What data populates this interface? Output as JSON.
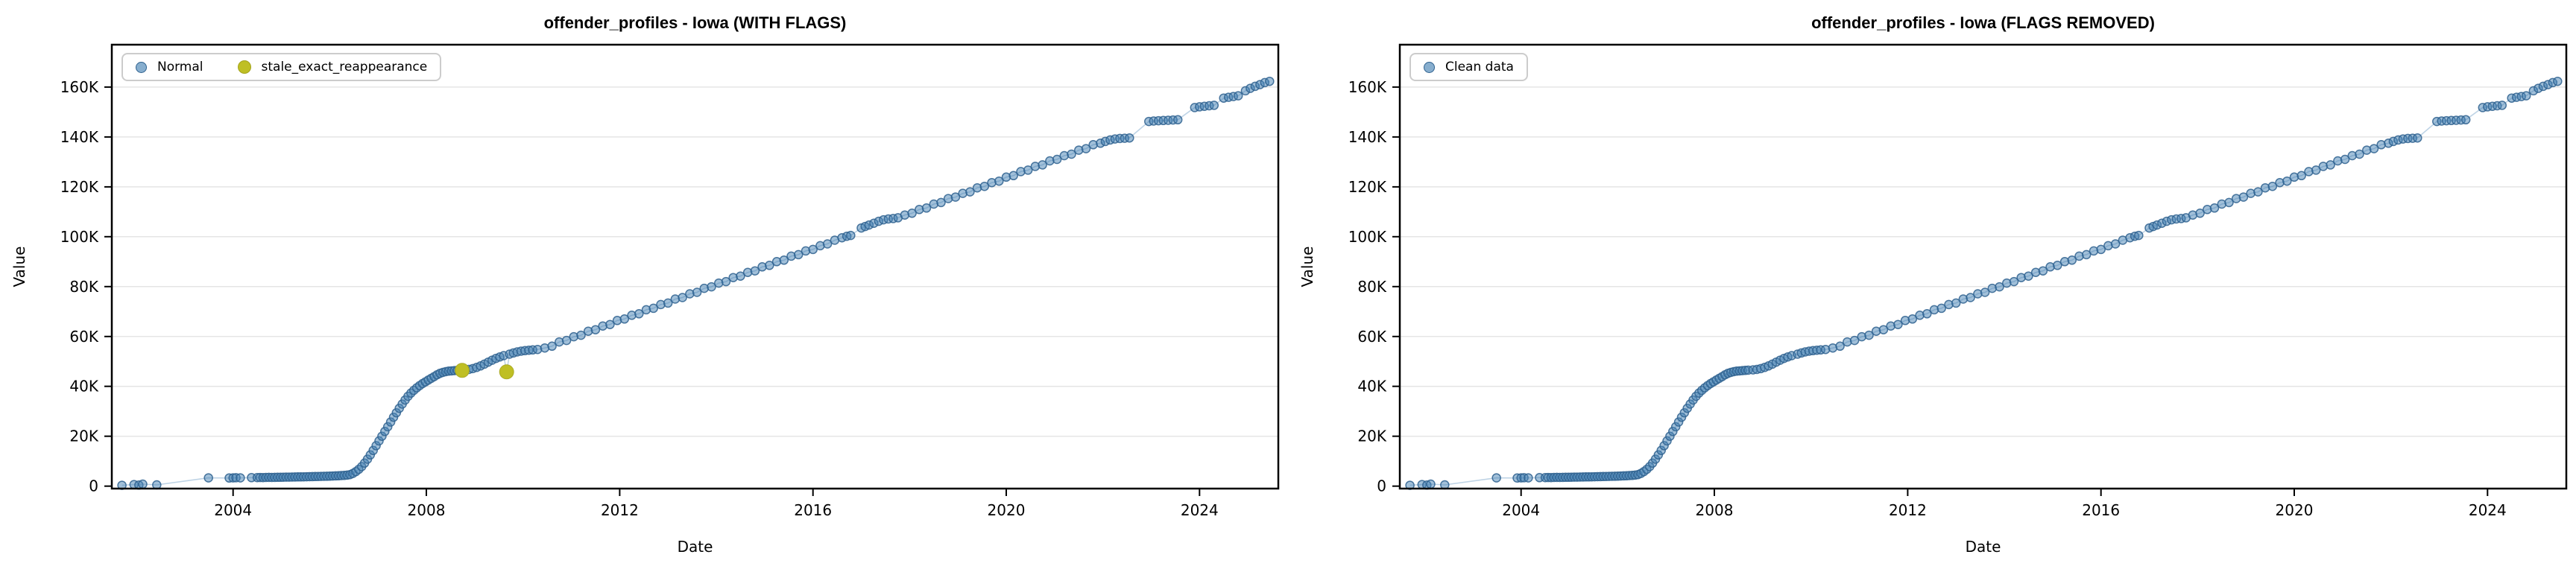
{
  "chart_data": {
    "type": "scatter",
    "xlabel": "Date",
    "ylabel": "Value",
    "grid": "horizontal",
    "grid_color": "#e5e5e5",
    "spine_color": "#000000",
    "background": "#ffffff",
    "xlim": [
      2001.49,
      2025.63
    ],
    "ylim": [
      -1000,
      177000
    ],
    "xticks": [
      2004,
      2008,
      2012,
      2016,
      2020,
      2024
    ],
    "xtick_labels": [
      "2004",
      "2008",
      "2012",
      "2016",
      "2020",
      "2024"
    ],
    "yticks": [
      0,
      20000,
      40000,
      60000,
      80000,
      100000,
      120000,
      140000,
      160000
    ],
    "ytick_labels": [
      "0",
      "20K",
      "40K",
      "60K",
      "80K",
      "100K",
      "120K",
      "140K",
      "160K"
    ],
    "line_color": "#4682b4",
    "line_opacity": 0.35,
    "series": [
      {
        "name": "Normal",
        "color": "#4682b4",
        "edge_color": "#2f618f",
        "fill_opacity": 0.5,
        "radius": 5.5,
        "stroke_width": 1.5,
        "points": [
          [
            2001.7,
            300
          ],
          [
            2001.95,
            600
          ],
          [
            2002.05,
            400
          ],
          [
            2002.13,
            800
          ],
          [
            2002.42,
            500
          ],
          [
            2003.49,
            3300
          ],
          [
            2003.92,
            3250
          ],
          [
            2004.0,
            3300
          ],
          [
            2004.06,
            3350
          ],
          [
            2004.15,
            3300
          ],
          [
            2004.38,
            3400
          ],
          [
            2004.5,
            3420
          ],
          [
            2004.56,
            3450
          ],
          [
            2004.62,
            3430
          ],
          [
            2004.68,
            3480
          ],
          [
            2004.74,
            3500
          ],
          [
            2004.8,
            3470
          ],
          [
            2004.86,
            3520
          ],
          [
            2004.92,
            3550
          ],
          [
            2004.98,
            3540
          ],
          [
            2005.04,
            3580
          ],
          [
            2005.1,
            3600
          ],
          [
            2005.16,
            3590
          ],
          [
            2005.22,
            3630
          ],
          [
            2005.28,
            3650
          ],
          [
            2005.34,
            3680
          ],
          [
            2005.4,
            3700
          ],
          [
            2005.46,
            3720
          ],
          [
            2005.52,
            3750
          ],
          [
            2005.58,
            3780
          ],
          [
            2005.64,
            3800
          ],
          [
            2005.7,
            3830
          ],
          [
            2005.76,
            3860
          ],
          [
            2005.82,
            3900
          ],
          [
            2005.88,
            3930
          ],
          [
            2005.94,
            3960
          ],
          [
            2006.0,
            4000
          ],
          [
            2006.06,
            4050
          ],
          [
            2006.12,
            4100
          ],
          [
            2006.18,
            4150
          ],
          [
            2006.24,
            4220
          ],
          [
            2006.3,
            4300
          ],
          [
            2006.36,
            4400
          ],
          [
            2006.42,
            4600
          ],
          [
            2006.48,
            5100
          ],
          [
            2006.54,
            5800
          ],
          [
            2006.6,
            6700
          ],
          [
            2006.66,
            7800
          ],
          [
            2006.72,
            9200
          ],
          [
            2006.78,
            10800
          ],
          [
            2006.84,
            12500
          ],
          [
            2006.9,
            14300
          ],
          [
            2006.96,
            16200
          ],
          [
            2007.02,
            18100
          ],
          [
            2007.08,
            20000
          ],
          [
            2007.14,
            21900
          ],
          [
            2007.2,
            23800
          ],
          [
            2007.26,
            25700
          ],
          [
            2007.32,
            27600
          ],
          [
            2007.38,
            29400
          ],
          [
            2007.44,
            31200
          ],
          [
            2007.5,
            32900
          ],
          [
            2007.56,
            34500
          ],
          [
            2007.62,
            36000
          ],
          [
            2007.68,
            37300
          ],
          [
            2007.74,
            38400
          ],
          [
            2007.8,
            39400
          ],
          [
            2007.86,
            40300
          ],
          [
            2007.92,
            41100
          ],
          [
            2007.98,
            41800
          ],
          [
            2008.04,
            42500
          ],
          [
            2008.1,
            43200
          ],
          [
            2008.16,
            43900
          ],
          [
            2008.22,
            44600
          ],
          [
            2008.28,
            45200
          ],
          [
            2008.34,
            45600
          ],
          [
            2008.4,
            45900
          ],
          [
            2008.46,
            46100
          ],
          [
            2008.52,
            46200
          ],
          [
            2008.58,
            46300
          ],
          [
            2008.64,
            46400
          ],
          [
            2008.7,
            46500
          ],
          [
            2008.8,
            46600
          ],
          [
            2008.88,
            46800
          ],
          [
            2008.96,
            47100
          ],
          [
            2009.04,
            47600
          ],
          [
            2009.12,
            48200
          ],
          [
            2009.2,
            48900
          ],
          [
            2009.28,
            49700
          ],
          [
            2009.36,
            50500
          ],
          [
            2009.44,
            51200
          ],
          [
            2009.52,
            51800
          ],
          [
            2009.6,
            52300
          ],
          [
            2009.72,
            52900
          ],
          [
            2009.8,
            53400
          ],
          [
            2009.88,
            53800
          ],
          [
            2009.96,
            54100
          ],
          [
            2010.04,
            54300
          ],
          [
            2010.12,
            54500
          ],
          [
            2010.2,
            54600
          ],
          [
            2010.3,
            54800
          ],
          [
            2010.45,
            55400
          ],
          [
            2010.6,
            56100
          ],
          [
            2010.75,
            57800
          ],
          [
            2010.9,
            58400
          ],
          [
            2011.05,
            59900
          ],
          [
            2011.2,
            60500
          ],
          [
            2011.35,
            62100
          ],
          [
            2011.5,
            62700
          ],
          [
            2011.65,
            64200
          ],
          [
            2011.8,
            64800
          ],
          [
            2011.95,
            66400
          ],
          [
            2012.1,
            67000
          ],
          [
            2012.25,
            68500
          ],
          [
            2012.4,
            69100
          ],
          [
            2012.55,
            70700
          ],
          [
            2012.7,
            71300
          ],
          [
            2012.85,
            72800
          ],
          [
            2013.0,
            73400
          ],
          [
            2013.15,
            75000
          ],
          [
            2013.3,
            75600
          ],
          [
            2013.45,
            77100
          ],
          [
            2013.6,
            77700
          ],
          [
            2013.75,
            79300
          ],
          [
            2013.9,
            79900
          ],
          [
            2014.05,
            81400
          ],
          [
            2014.2,
            82000
          ],
          [
            2014.35,
            83600
          ],
          [
            2014.5,
            84200
          ],
          [
            2014.65,
            85700
          ],
          [
            2014.8,
            86300
          ],
          [
            2014.95,
            87900
          ],
          [
            2015.1,
            88500
          ],
          [
            2015.25,
            90000
          ],
          [
            2015.4,
            90600
          ],
          [
            2015.55,
            92200
          ],
          [
            2015.7,
            92800
          ],
          [
            2015.85,
            94300
          ],
          [
            2016.0,
            94900
          ],
          [
            2016.15,
            96400
          ],
          [
            2016.3,
            97100
          ],
          [
            2016.45,
            98600
          ],
          [
            2016.6,
            99600
          ],
          [
            2016.7,
            100200
          ],
          [
            2016.78,
            100500
          ],
          [
            2017.0,
            103500
          ],
          [
            2017.08,
            104100
          ],
          [
            2017.16,
            104700
          ],
          [
            2017.26,
            105400
          ],
          [
            2017.36,
            106200
          ],
          [
            2017.46,
            106800
          ],
          [
            2017.56,
            107100
          ],
          [
            2017.66,
            107300
          ],
          [
            2017.76,
            107600
          ],
          [
            2017.9,
            108700
          ],
          [
            2018.05,
            109400
          ],
          [
            2018.2,
            110900
          ],
          [
            2018.35,
            111500
          ],
          [
            2018.5,
            113100
          ],
          [
            2018.65,
            113700
          ],
          [
            2018.8,
            115300
          ],
          [
            2018.95,
            115900
          ],
          [
            2019.1,
            117400
          ],
          [
            2019.25,
            118000
          ],
          [
            2019.4,
            119600
          ],
          [
            2019.55,
            120200
          ],
          [
            2019.7,
            121700
          ],
          [
            2019.85,
            122300
          ],
          [
            2020.0,
            123900
          ],
          [
            2020.15,
            124500
          ],
          [
            2020.3,
            126100
          ],
          [
            2020.45,
            126700
          ],
          [
            2020.6,
            128200
          ],
          [
            2020.75,
            128800
          ],
          [
            2020.9,
            130400
          ],
          [
            2021.05,
            131000
          ],
          [
            2021.2,
            132500
          ],
          [
            2021.35,
            133100
          ],
          [
            2021.5,
            134700
          ],
          [
            2021.65,
            135300
          ],
          [
            2021.8,
            136900
          ],
          [
            2021.95,
            137500
          ],
          [
            2022.05,
            138200
          ],
          [
            2022.15,
            138800
          ],
          [
            2022.25,
            139200
          ],
          [
            2022.35,
            139400
          ],
          [
            2022.45,
            139500
          ],
          [
            2022.55,
            139600
          ],
          [
            2022.95,
            146200
          ],
          [
            2023.05,
            146400
          ],
          [
            2023.15,
            146500
          ],
          [
            2023.25,
            146600
          ],
          [
            2023.35,
            146700
          ],
          [
            2023.45,
            146800
          ],
          [
            2023.55,
            146900
          ],
          [
            2023.9,
            151800
          ],
          [
            2024.0,
            152100
          ],
          [
            2024.1,
            152300
          ],
          [
            2024.2,
            152500
          ],
          [
            2024.3,
            152700
          ],
          [
            2024.5,
            155600
          ],
          [
            2024.6,
            155900
          ],
          [
            2024.7,
            156200
          ],
          [
            2024.8,
            156500
          ],
          [
            2024.95,
            158500
          ],
          [
            2025.05,
            159500
          ],
          [
            2025.15,
            160300
          ],
          [
            2025.25,
            161000
          ],
          [
            2025.35,
            161800
          ],
          [
            2025.45,
            162300
          ]
        ]
      },
      {
        "name": "stale_exact_reappearance",
        "color": "#bfbf24",
        "edge_color": "#a3a31c",
        "fill_opacity": 1,
        "radius": 9.5,
        "stroke_width": 1,
        "points": [
          [
            2008.74,
            46400
          ],
          [
            2009.66,
            45800
          ]
        ]
      }
    ],
    "charts": [
      {
        "title": "offender_profiles - Iowa (WITH FLAGS)",
        "series": [
          0,
          1
        ],
        "legend": [
          {
            "label": "Normal",
            "series": 0
          },
          {
            "label": "stale_exact_reappearance",
            "series": 1
          }
        ]
      },
      {
        "title": "offender_profiles - Iowa (FLAGS REMOVED)",
        "series": [
          0
        ],
        "legend": [
          {
            "label": "Clean data",
            "series": 0
          }
        ]
      }
    ]
  }
}
